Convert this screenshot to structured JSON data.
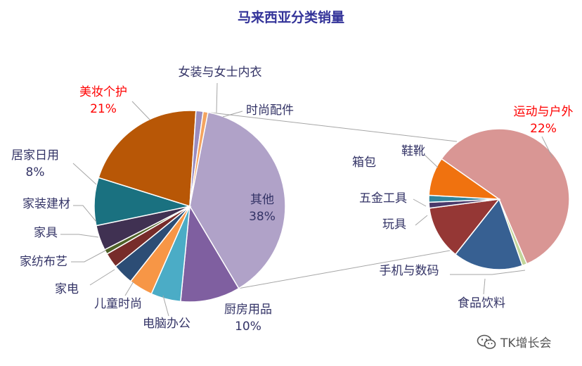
{
  "chart_data": {
    "type": "pie",
    "title": "马来西亚分类销量",
    "colors": {
      "title": "#333399",
      "label": "#333366",
      "highlight": "#ff0000",
      "leader": "#a6a6a6"
    },
    "main": [
      {
        "name": "其他",
        "value": 38,
        "label": "38%",
        "color": "#b0a2c8"
      },
      {
        "name": "厨房用品",
        "value": 10,
        "label": "10%",
        "color": "#7f5fa0"
      },
      {
        "name": "电脑办公",
        "value": 5,
        "color": "#4bacc6"
      },
      {
        "name": "儿童时尚",
        "value": 4,
        "color": "#f79646"
      },
      {
        "name": "家电",
        "value": 3.5,
        "color": "#2c4d75"
      },
      {
        "name": "家纺布艺",
        "value": 2.5,
        "color": "#772c2a"
      },
      {
        "name": "家具",
        "value": 0.8,
        "color": "#4f6228"
      },
      {
        "name": "家装建材",
        "value": 4.2,
        "color": "#403152"
      },
      {
        "name": "居家日用",
        "value": 8,
        "label": "8%",
        "color": "#1a7180"
      },
      {
        "name": "美妆个护",
        "value": 21,
        "label": "21%",
        "color": "#b85706",
        "highlight": true
      },
      {
        "name": "女装与女士内衣",
        "value": 1.2,
        "color": "#9a8cbf"
      },
      {
        "name": "时尚配件",
        "value": 0.8,
        "color": "#f4a460"
      }
    ],
    "secondary": [
      {
        "name": "运动与户外",
        "value": 22,
        "label": "22%",
        "color": "#d99694",
        "highlight": true
      },
      {
        "name": "鞋靴",
        "value": 0.4,
        "color": "#c3d69b"
      },
      {
        "name": "食品饮料",
        "value": 6,
        "color": "#376092"
      },
      {
        "name": "手机与数码",
        "value": 0,
        "color": "#5b4a80"
      },
      {
        "name": "玩具",
        "value": 4.6,
        "color": "#953735"
      },
      {
        "name": "五金工具",
        "value": 0.5,
        "color": "#4a3a6a"
      },
      {
        "name": "箱包",
        "value": 0.6,
        "color": "#31859c"
      },
      {
        "name": "",
        "value": 3.3,
        "color": "#f0720f"
      }
    ],
    "secondary_text_labels": [
      "运动与户外",
      "鞋靴",
      "箱包",
      "五金工具",
      "玩具",
      "手机与数码",
      "食品饮料"
    ]
  },
  "watermark": {
    "text": "TK增长会",
    "icon": "wechat-icon"
  }
}
